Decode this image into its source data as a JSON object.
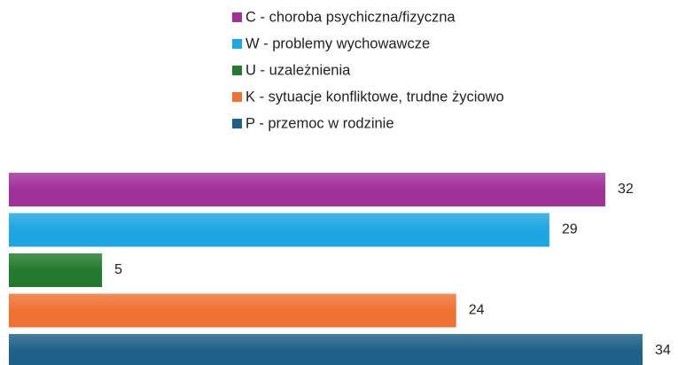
{
  "chart_data": {
    "type": "bar",
    "orientation": "horizontal",
    "categories": [
      "C - choroba psychiczna/fizyczna",
      "W - problemy wychowawcze",
      "U - uzależnienia",
      "K - sytuacje konfliktowe, trudne życiowo",
      "P - przemoc w rodzinie"
    ],
    "values": [
      32,
      29,
      5,
      24,
      34
    ],
    "colors": [
      "#a0309a",
      "#1ea6e2",
      "#237a2e",
      "#f07232",
      "#1f6088"
    ],
    "legend": "top"
  }
}
